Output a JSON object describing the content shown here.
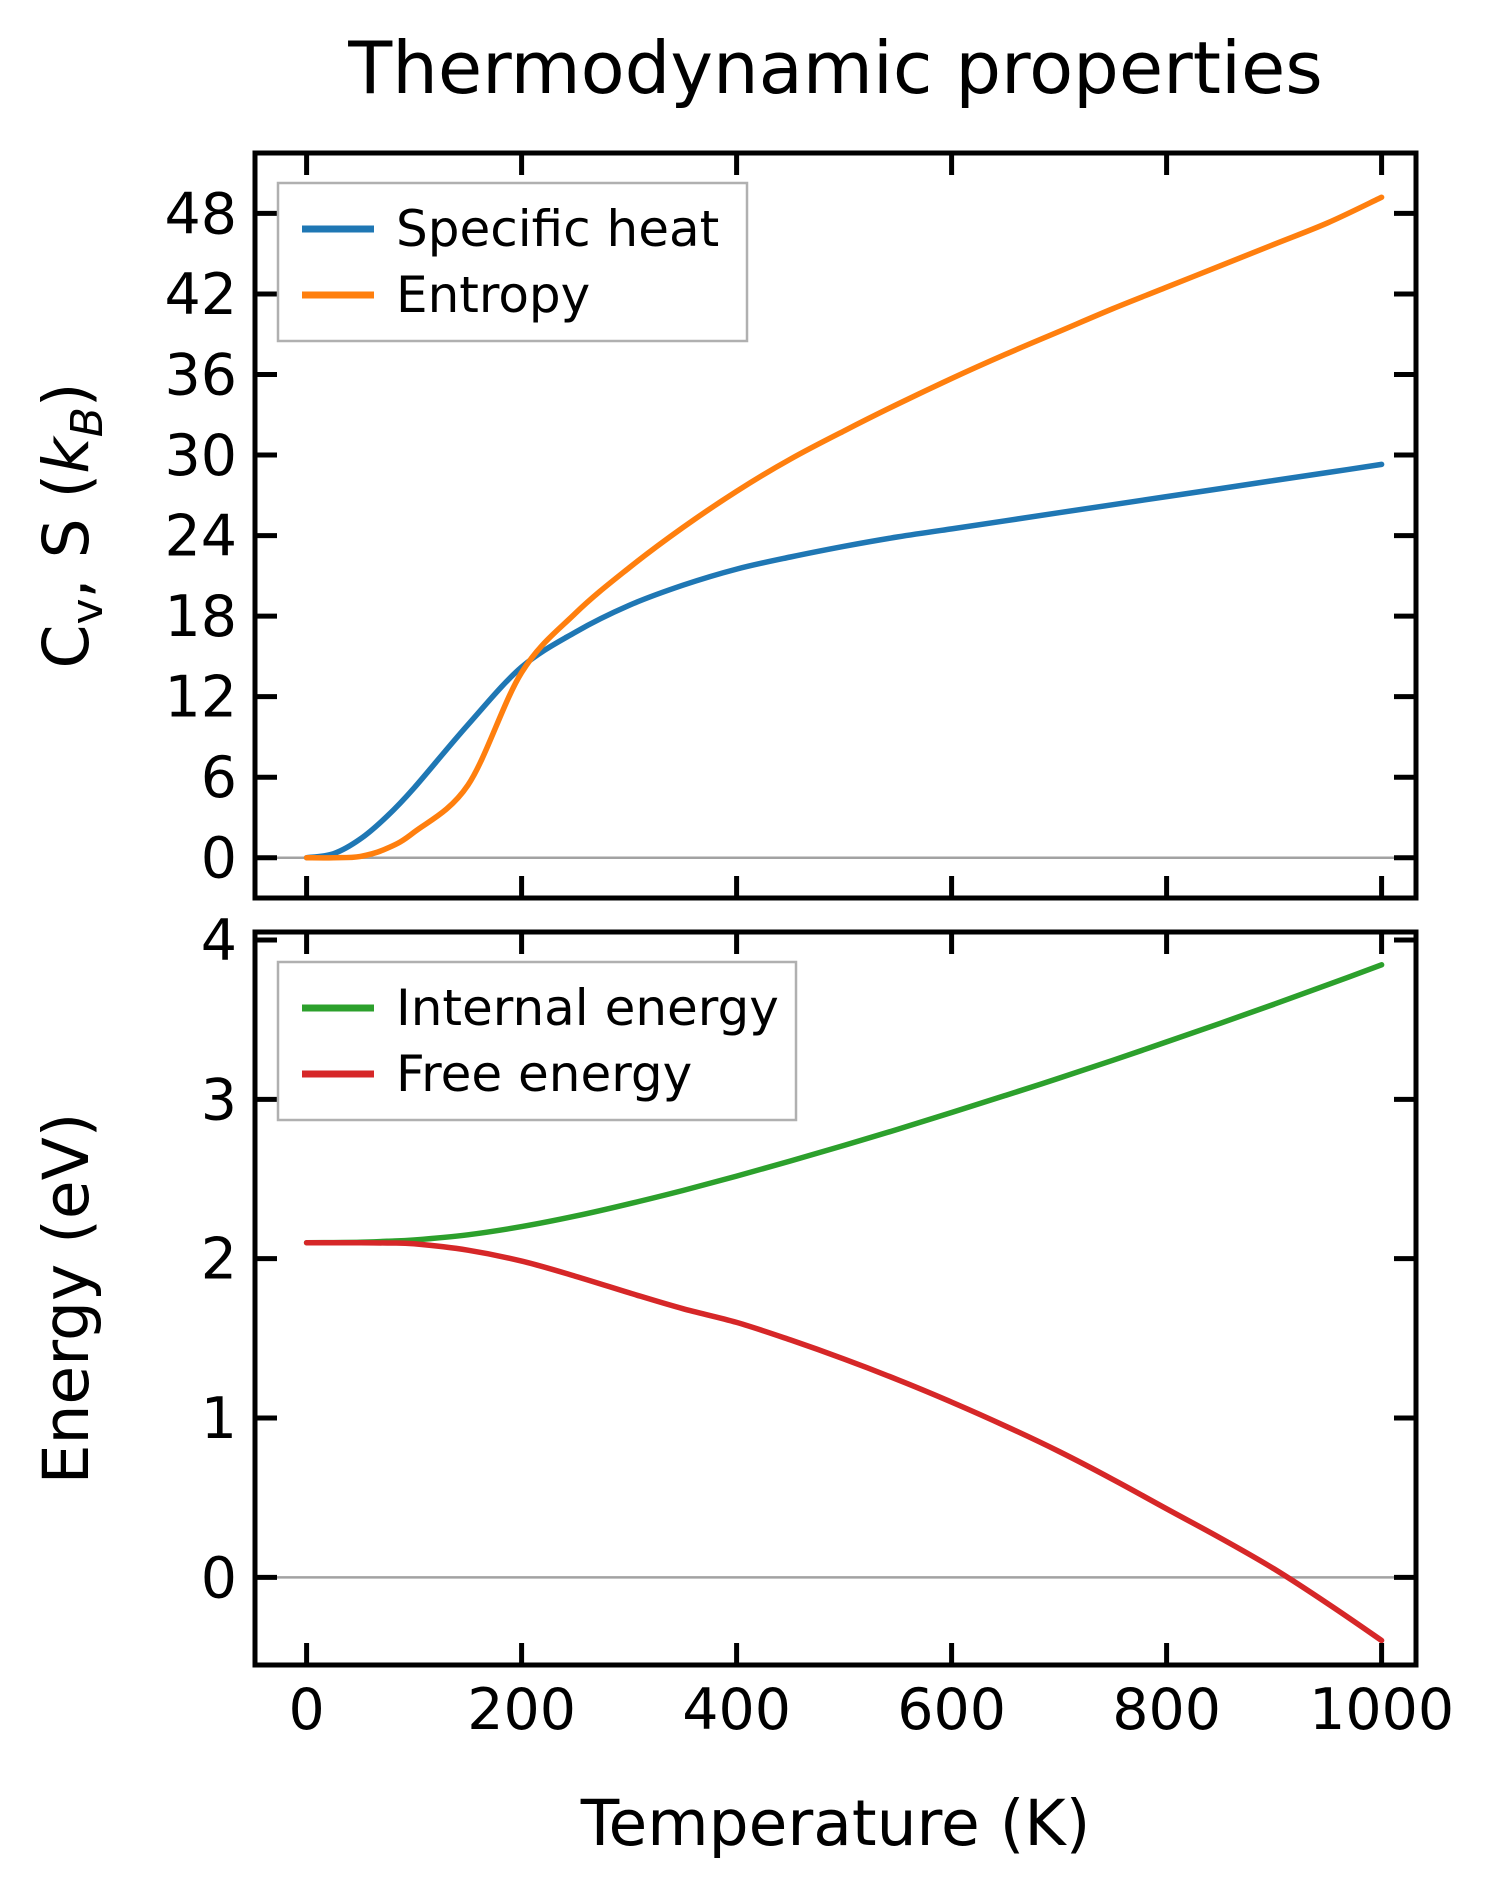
{
  "title": "Thermodynamic properties",
  "background": "#ffffff",
  "chart_data": [
    {
      "type": "line",
      "panel": "top",
      "title": "",
      "xlabel": "",
      "ylabel_plain": "Cv, S (kB)",
      "ylabel_parts": [
        {
          "text": "C"
        },
        {
          "text": "v",
          "sub": true
        },
        {
          "text": ", S ("
        },
        {
          "text": "k",
          "italic": true
        },
        {
          "text": "B",
          "sub": true,
          "italic": true
        },
        {
          "text": ")"
        }
      ],
      "xlim": [
        -48,
        1032
      ],
      "ylim": [
        -3.0,
        52.5
      ],
      "xticks": [
        0,
        200,
        400,
        600,
        800,
        1000
      ],
      "xtick_labels_visible": false,
      "yticks": [
        0,
        6,
        12,
        18,
        24,
        30,
        36,
        42,
        48
      ],
      "grid": false,
      "zero_line": true,
      "zero_line_color": "#a2a2a2",
      "legend": {
        "position": "upper-left",
        "labels": [
          "Specific heat",
          "Entropy"
        ]
      },
      "x": [
        0,
        25,
        50,
        75,
        100,
        150,
        200,
        250,
        300,
        350,
        400,
        450,
        500,
        550,
        600,
        650,
        700,
        750,
        800,
        850,
        900,
        950,
        1000
      ],
      "series": [
        {
          "name": "Specific heat",
          "color": "#1f77b4",
          "values": [
            0,
            0.3,
            1.4,
            3.1,
            5.2,
            9.9,
            14.2,
            16.8,
            18.8,
            20.3,
            21.5,
            22.4,
            23.2,
            23.9,
            24.5,
            25.1,
            25.7,
            26.3,
            26.9,
            27.5,
            28.1,
            28.7,
            29.3
          ]
        },
        {
          "name": "Entropy",
          "color": "#ff7f0e",
          "values": [
            0,
            0,
            0.1,
            0.7,
            1.9,
            5.4,
            13.8,
            18.2,
            21.6,
            24.6,
            27.3,
            29.7,
            31.8,
            33.8,
            35.7,
            37.5,
            39.2,
            40.9,
            42.5,
            44.1,
            45.7,
            47.3,
            49.2
          ]
        }
      ]
    },
    {
      "type": "line",
      "panel": "bottom",
      "title": "",
      "xlabel": "Temperature (K)",
      "ylabel_plain": "Energy (eV)",
      "ylabel_parts": [
        {
          "text": "Energy (eV)"
        }
      ],
      "xlim": [
        -48,
        1032
      ],
      "ylim": [
        -0.55,
        4.05
      ],
      "xticks": [
        0,
        200,
        400,
        600,
        800,
        1000
      ],
      "xtick_labels_visible": true,
      "yticks": [
        0,
        1,
        2,
        3,
        4
      ],
      "grid": false,
      "zero_line": true,
      "zero_line_color": "#a2a2a2",
      "legend": {
        "position": "upper-left",
        "labels": [
          "Internal energy",
          "Free energy"
        ]
      },
      "x": [
        0,
        25,
        50,
        75,
        100,
        150,
        200,
        250,
        300,
        350,
        400,
        450,
        500,
        550,
        600,
        650,
        700,
        750,
        800,
        850,
        900,
        950,
        1000
      ],
      "series": [
        {
          "name": "Internal energy",
          "color": "#2ca02c",
          "values": [
            2.1,
            2.101,
            2.103,
            2.109,
            2.117,
            2.15,
            2.201,
            2.267,
            2.344,
            2.428,
            2.518,
            2.613,
            2.711,
            2.812,
            2.917,
            3.024,
            3.133,
            3.245,
            3.36,
            3.477,
            3.597,
            3.719,
            3.844
          ]
        },
        {
          "name": "Free energy",
          "color": "#d62728",
          "values": [
            2.1,
            2.1,
            2.1,
            2.098,
            2.093,
            2.053,
            1.985,
            1.89,
            1.786,
            1.686,
            1.6,
            1.49,
            1.37,
            1.24,
            1.1,
            0.95,
            0.79,
            0.615,
            0.43,
            0.247,
            0.053,
            -0.165,
            -0.396
          ]
        }
      ]
    }
  ]
}
